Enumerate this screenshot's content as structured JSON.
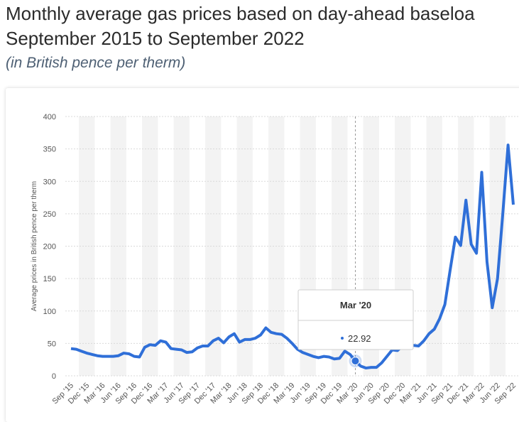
{
  "chart_data": {
    "type": "line",
    "title": [
      "Monthly average gas prices based on day-ahead baseloa",
      "September 2015 to September 2022"
    ],
    "subtitle": "(in British pence per therm)",
    "y_label": "Average prices in British pence per therm",
    "categories": [
      "Sep '15",
      null,
      null,
      "Dec '15",
      null,
      null,
      "Mar '16",
      null,
      null,
      "Jun '16",
      null,
      null,
      "Sep '16",
      null,
      null,
      "Dec '16",
      null,
      null,
      "Mar '17",
      null,
      null,
      "Jun '17",
      null,
      null,
      "Sep '17",
      null,
      null,
      "Dec '17",
      null,
      null,
      "Mar '18",
      null,
      null,
      "Jun '18",
      null,
      null,
      "Sep '18",
      null,
      null,
      "Dec '18",
      null,
      null,
      "Mar '19",
      null,
      null,
      "Jun '19",
      null,
      null,
      "Sep '19",
      null,
      null,
      "Dec '19",
      null,
      null,
      "Mar '20",
      null,
      null,
      "Jun '20",
      null,
      null,
      "Sep '20",
      null,
      null,
      "Dec '20",
      null,
      null,
      "Mar '21",
      null,
      null,
      "Jun '21",
      null,
      null,
      "Sep '21",
      null,
      null,
      "Dec '21",
      null,
      null,
      "Mar '22",
      null,
      null,
      "Jun '22",
      null,
      null,
      "Sep '22"
    ],
    "series": [
      {
        "name": "Average price",
        "color": "#2f6fd8",
        "values": [
          42,
          41,
          38,
          35,
          33,
          31,
          30,
          30,
          30,
          31,
          35,
          34,
          30,
          29,
          44,
          48,
          47,
          54,
          52,
          42,
          41,
          40,
          36,
          37,
          43,
          46,
          46,
          54,
          58,
          51,
          60,
          65,
          52,
          56,
          56,
          58,
          63,
          74,
          67,
          65,
          64,
          58,
          50,
          41,
          36,
          33,
          30,
          28,
          30,
          29,
          26,
          27,
          38,
          33,
          22.92,
          15,
          12,
          13,
          13,
          20,
          30,
          40,
          39,
          46,
          50,
          47,
          46,
          54,
          65,
          72,
          88,
          110,
          163,
          214,
          201,
          271,
          203,
          189,
          314,
          176,
          105,
          150,
          250,
          356,
          264
        ]
      }
    ],
    "ylim": [
      0,
      400
    ],
    "yticks": [
      0,
      50,
      100,
      150,
      200,
      250,
      300,
      350,
      400
    ],
    "grid": true,
    "tooltip_index": 54
  }
}
